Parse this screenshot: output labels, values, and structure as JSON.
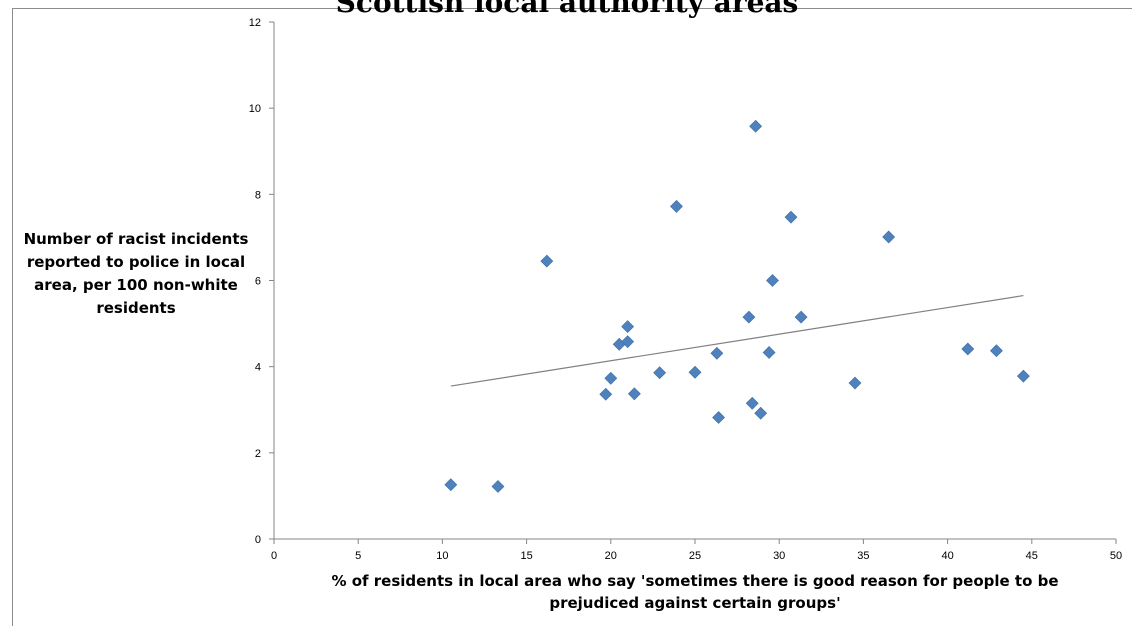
{
  "chart_data": {
    "type": "scatter",
    "title": "Scottish local authority areas",
    "xlabel": "% of residents in local area who say 'sometimes there is good reason for people to be prejudiced against certain groups'",
    "ylabel": "Number of racist incidents reported to police in local area, per 100 non-white residents",
    "xlim": [
      0,
      50
    ],
    "ylim": [
      0,
      12
    ],
    "xticks": [
      0,
      5,
      10,
      15,
      20,
      25,
      30,
      35,
      40,
      45,
      50
    ],
    "yticks": [
      0,
      2,
      4,
      6,
      8,
      10,
      12
    ],
    "grid": false,
    "legend": "none",
    "marker_color": "#4F81BD",
    "trendline_color": "#808080",
    "series": [
      {
        "marker": "diamond",
        "points": [
          {
            "x": 10.5,
            "y": 1.26
          },
          {
            "x": 13.3,
            "y": 1.22
          },
          {
            "x": 16.2,
            "y": 6.45
          },
          {
            "x": 19.7,
            "y": 3.36
          },
          {
            "x": 20.0,
            "y": 3.73
          },
          {
            "x": 20.5,
            "y": 4.52
          },
          {
            "x": 21.0,
            "y": 4.93
          },
          {
            "x": 21.0,
            "y": 4.58
          },
          {
            "x": 21.4,
            "y": 3.37
          },
          {
            "x": 22.9,
            "y": 3.86
          },
          {
            "x": 23.9,
            "y": 7.72
          },
          {
            "x": 25.0,
            "y": 3.87
          },
          {
            "x": 26.3,
            "y": 4.31
          },
          {
            "x": 26.4,
            "y": 2.82
          },
          {
            "x": 28.2,
            "y": 5.15
          },
          {
            "x": 28.4,
            "y": 3.15
          },
          {
            "x": 28.6,
            "y": 9.58
          },
          {
            "x": 28.9,
            "y": 2.92
          },
          {
            "x": 29.4,
            "y": 4.33
          },
          {
            "x": 29.6,
            "y": 6.0
          },
          {
            "x": 30.7,
            "y": 7.47
          },
          {
            "x": 31.3,
            "y": 5.15
          },
          {
            "x": 34.5,
            "y": 3.62
          },
          {
            "x": 36.5,
            "y": 7.01
          },
          {
            "x": 41.2,
            "y": 4.41
          },
          {
            "x": 42.9,
            "y": 4.37
          },
          {
            "x": 44.5,
            "y": 3.78
          }
        ]
      }
    ],
    "trendline": {
      "x_start": 10.5,
      "y_start": 3.55,
      "x_end": 44.5,
      "y_end": 5.65
    }
  }
}
